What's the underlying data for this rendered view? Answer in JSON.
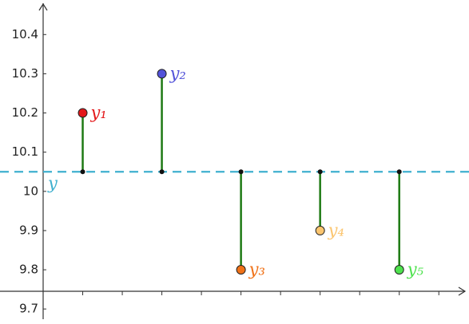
{
  "chart_data": {
    "type": "residual",
    "xlim": [
      0.5,
      5.75
    ],
    "xticks": [
      1,
      1.5,
      2,
      2.5,
      3,
      3.5,
      4,
      4.5,
      5,
      5.5
    ],
    "ylim": [
      9.68,
      10.48
    ],
    "yticks": [
      9.7,
      9.8,
      9.9,
      10,
      10.1,
      10.2,
      10.3,
      10.4
    ],
    "mean": {
      "label": "y",
      "value": 10.05,
      "color": "#3fb0cf"
    },
    "segment_color": "#1e7a14",
    "points": [
      {
        "label": "y₁",
        "x": 1,
        "value": 10.2,
        "color": "#e3191b"
      },
      {
        "label": "y₂",
        "x": 2,
        "value": 10.3,
        "color": "#5252d9"
      },
      {
        "label": "y₃",
        "x": 3,
        "value": 9.8,
        "color": "#f07218"
      },
      {
        "label": "y₄",
        "x": 4,
        "value": 9.9,
        "color": "#fbc56f"
      },
      {
        "label": "y₅",
        "x": 5,
        "value": 9.8,
        "color": "#4ee24e"
      }
    ]
  }
}
